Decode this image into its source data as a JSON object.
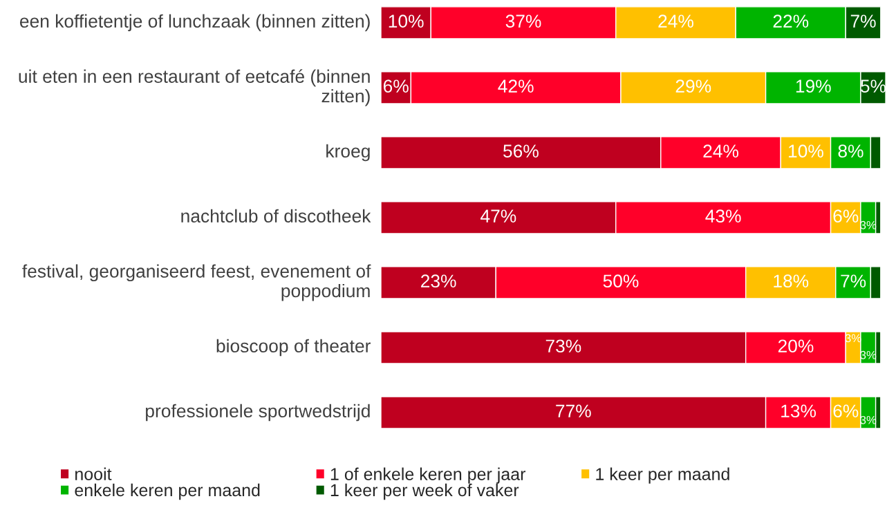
{
  "chart_data": {
    "type": "bar",
    "orientation": "horizontal",
    "stacked": true,
    "legend": "bottom",
    "tick_labels": "y",
    "categories": [
      "een koffietentje of lunchzaak (binnen zitten)",
      "uit eten in een restaurant of eetcafé (binnen zitten)",
      "kroeg",
      "nachtclub of discotheek",
      "festival, georganiseerd feest, evenement of poppodium",
      "bioscoop of theater",
      "professionele sportwedstrijd"
    ],
    "series": [
      {
        "name": "nooit",
        "color": "#bf001f",
        "values": [
          10,
          6,
          56,
          47,
          23,
          73,
          77
        ],
        "value_labels": [
          "10%",
          "6%",
          "56%",
          "47%",
          "23%",
          "73%",
          "77%"
        ]
      },
      {
        "name": "1 of enkele keren per jaar",
        "color": "#ff0029",
        "values": [
          37,
          42,
          24,
          43,
          50,
          20,
          13
        ],
        "value_labels": [
          "37%",
          "42%",
          "24%",
          "43%",
          "50%",
          "20%",
          "13%"
        ]
      },
      {
        "name": "1 keer per maand",
        "color": "#ffc000",
        "values": [
          24,
          29,
          10,
          6,
          18,
          3,
          6
        ],
        "value_labels": [
          "24%",
          "29%",
          "10%",
          "6%",
          "18%",
          "3%",
          "6%"
        ]
      },
      {
        "name": "enkele keren per maand",
        "color": "#00b400",
        "values": [
          22,
          19,
          8,
          3,
          7,
          3,
          3
        ],
        "value_labels": [
          "22%",
          "19%",
          "8%",
          "3%",
          "7%",
          "3%",
          "3%"
        ]
      },
      {
        "name": "1 keer per week of vaker",
        "color": "#005a00",
        "values": [
          7,
          5,
          2,
          1,
          2,
          1,
          1
        ],
        "value_labels": [
          "7%",
          "5%",
          null,
          null,
          null,
          null,
          null
        ]
      }
    ]
  }
}
